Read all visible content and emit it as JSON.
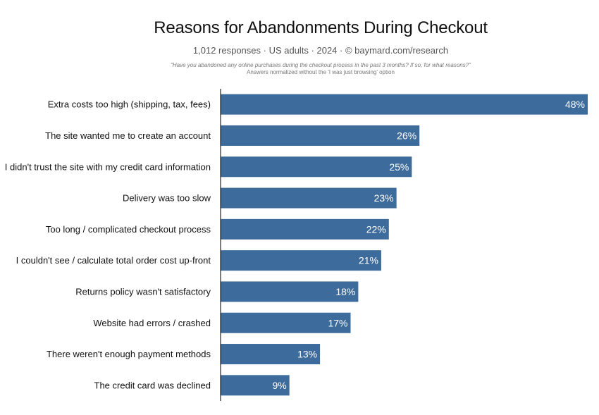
{
  "chart_data": {
    "type": "bar",
    "orientation": "horizontal",
    "title": "Reasons for Abandonments During Checkout",
    "subtitle": "1,012 responses  ·  US adults  ·  2024  ·  ©  baymard.com/research",
    "question": "\"Have you abandoned any online purchases during the checkout process in the past 3 months? If so, for what reasons?\"",
    "note": "Answers normalized without the 'I was just browsing' option",
    "categories": [
      "Extra costs too high (shipping, tax, fees)",
      "The site wanted me to create an account",
      "I didn't trust the site with my credit card information",
      "Delivery was too slow",
      "Too long / complicated checkout process",
      "I couldn't see / calculate total order cost up-front",
      "Returns policy wasn't satisfactory",
      "Website had errors / crashed",
      "There weren't enough payment methods",
      "The credit card was declined"
    ],
    "values": [
      48,
      26,
      25,
      23,
      22,
      21,
      18,
      17,
      13,
      9
    ],
    "value_labels": [
      "48%",
      "26%",
      "25%",
      "23%",
      "22%",
      "21%",
      "18%",
      "17%",
      "13%",
      "9%"
    ],
    "xlim": [
      0,
      48
    ],
    "grid": false,
    "bar_color": "#3d6b9c"
  }
}
